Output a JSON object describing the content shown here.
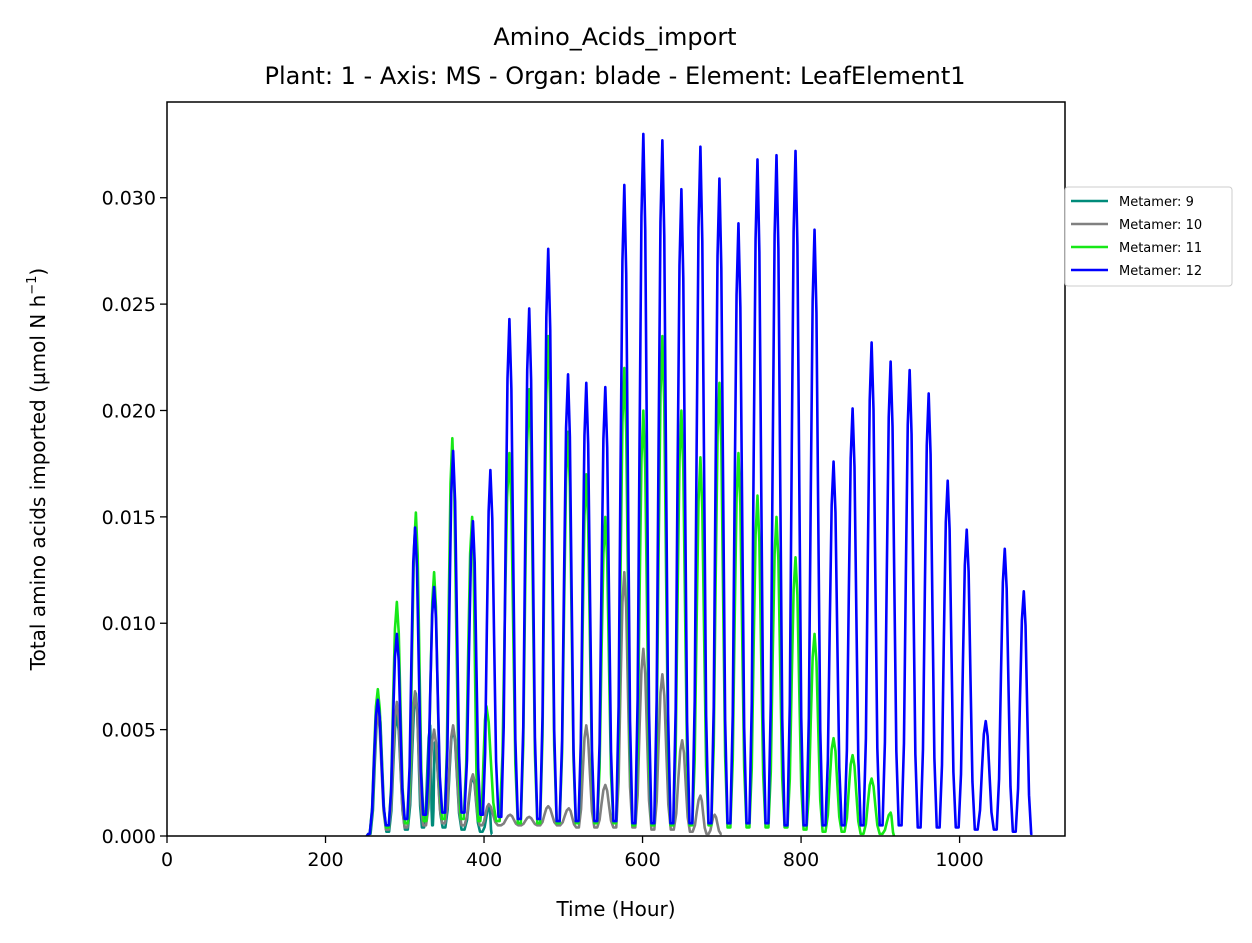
{
  "chart_data": {
    "type": "line",
    "title": "Amino_Acids_import",
    "subtitle": "Plant: 1 - Axis: MS - Organ: blade - Element: LeafElement1",
    "xlabel": "Time (Hour)",
    "ylabel_main": "Total amino acids imported (µmol N h",
    "ylabel_sup": "−1",
    "ylabel_close": ")",
    "xlim": [
      0,
      1133
    ],
    "ylim": [
      0,
      0.0345
    ],
    "xticks": [
      0,
      200,
      400,
      600,
      800,
      1000
    ],
    "xtick_labels": [
      "0",
      "200",
      "400",
      "600",
      "800",
      "1000"
    ],
    "yticks": [
      0,
      0.005,
      0.01,
      0.015,
      0.02,
      0.025,
      0.03
    ],
    "ytick_labels": [
      "0.000",
      "0.005",
      "0.010",
      "0.015",
      "0.020",
      "0.025",
      "0.030"
    ],
    "grid": false,
    "legend_position": "outside-right-top",
    "series": [
      {
        "name": "Metamer: 9",
        "color": "#008b7a",
        "start": 252,
        "end": 410,
        "period": 24,
        "peaks": [
          [
            267,
            0.0062
          ],
          [
            290,
            0.0057
          ],
          [
            314,
            0.0067
          ],
          [
            332,
            0.0052
          ],
          [
            338,
            0.0044
          ],
          [
            361,
            0.0051
          ],
          [
            386,
            0.0028
          ],
          [
            407,
            0.0014
          ]
        ],
        "troughs": [
          0.0001,
          0.0002,
          0.0003,
          0.0004,
          0.0005,
          0.0004,
          0.0003,
          0.0002,
          0.0001
        ]
      },
      {
        "name": "Metamer: 10",
        "color": "#808080",
        "start": 252,
        "end": 700,
        "period": 24,
        "peaks": [
          [
            266,
            0.0058
          ],
          [
            290,
            0.0063
          ],
          [
            313,
            0.0068
          ],
          [
            337,
            0.005
          ],
          [
            361,
            0.0052
          ],
          [
            386,
            0.0029
          ],
          [
            406,
            0.0015
          ],
          [
            433,
            0.001
          ],
          [
            457,
            0.0009
          ],
          [
            481,
            0.0014
          ],
          [
            507,
            0.0013
          ],
          [
            529,
            0.0052
          ],
          [
            553,
            0.0024
          ],
          [
            577,
            0.0124
          ],
          [
            601,
            0.0088
          ],
          [
            625,
            0.0076
          ],
          [
            650,
            0.0045
          ],
          [
            673,
            0.0019
          ],
          [
            691,
            0.001
          ]
        ],
        "troughs": [
          0.0001,
          0.0003,
          0.0004,
          0.0005,
          0.0006,
          0.0005,
          0.0005,
          0.0005,
          0.0005,
          0.0005,
          0.0005,
          0.0004,
          0.0004,
          0.0004,
          0.0004,
          0.0003,
          0.0003,
          0.0002,
          0.0001,
          0.0001
        ]
      },
      {
        "name": "Metamer: 11",
        "color": "#17e817",
        "start": 252,
        "end": 918,
        "period": 24,
        "peaks": [
          [
            266,
            0.0069
          ],
          [
            290,
            0.011
          ],
          [
            314,
            0.0152
          ],
          [
            337,
            0.0124
          ],
          [
            360,
            0.0187
          ],
          [
            385,
            0.015
          ],
          [
            403,
            0.0061
          ],
          [
            432,
            0.018
          ],
          [
            457,
            0.021
          ],
          [
            481,
            0.0235
          ],
          [
            506,
            0.019
          ],
          [
            529,
            0.017
          ],
          [
            553,
            0.015
          ],
          [
            577,
            0.022
          ],
          [
            601,
            0.02
          ],
          [
            625,
            0.0235
          ],
          [
            649,
            0.02
          ],
          [
            673,
            0.0178
          ],
          [
            697,
            0.0213
          ],
          [
            721,
            0.018
          ],
          [
            745,
            0.016
          ],
          [
            769,
            0.015
          ],
          [
            793,
            0.0131
          ],
          [
            817,
            0.0095
          ],
          [
            841,
            0.0046
          ],
          [
            865,
            0.0038
          ],
          [
            889,
            0.0027
          ],
          [
            913,
            0.0011
          ]
        ],
        "troughs": [
          0.0001,
          0.0004,
          0.0006,
          0.0007,
          0.0008,
          0.0008,
          0.0007,
          0.0007,
          0.0006,
          0.0006,
          0.0006,
          0.0006,
          0.0006,
          0.0006,
          0.0005,
          0.0005,
          0.0005,
          0.0005,
          0.0005,
          0.0004,
          0.0004,
          0.0004,
          0.0004,
          0.0003,
          0.0002,
          0.0002,
          0.0001,
          0.0001,
          0.0
        ]
      },
      {
        "name": "Metamer: 12",
        "color": "#0000ff",
        "start": 252,
        "end": 1092,
        "period": 24,
        "peaks": [
          [
            266,
            0.0064
          ],
          [
            290,
            0.0095
          ],
          [
            313,
            0.0145
          ],
          [
            337,
            0.0117
          ],
          [
            361,
            0.0181
          ],
          [
            386,
            0.0148
          ],
          [
            408,
            0.0172
          ],
          [
            432,
            0.0243
          ],
          [
            457,
            0.0248
          ],
          [
            481,
            0.0276
          ],
          [
            506,
            0.0217
          ],
          [
            529,
            0.0213
          ],
          [
            553,
            0.0211
          ],
          [
            577,
            0.0306
          ],
          [
            601,
            0.033
          ],
          [
            625,
            0.0327
          ],
          [
            649,
            0.0304
          ],
          [
            673,
            0.0324
          ],
          [
            697,
            0.0309
          ],
          [
            721,
            0.0288
          ],
          [
            745,
            0.0318
          ],
          [
            769,
            0.032
          ],
          [
            793,
            0.0322
          ],
          [
            817,
            0.0285
          ],
          [
            841,
            0.0176
          ],
          [
            865,
            0.0201
          ],
          [
            889,
            0.0232
          ],
          [
            913,
            0.0223
          ],
          [
            937,
            0.0219
          ],
          [
            961,
            0.0208
          ],
          [
            985,
            0.0167
          ],
          [
            1009,
            0.0144
          ],
          [
            1033,
            0.0054
          ],
          [
            1057,
            0.0135
          ],
          [
            1081,
            0.0115
          ]
        ],
        "troughs": [
          0.0001,
          0.0005,
          0.0008,
          0.001,
          0.0011,
          0.0011,
          0.001,
          0.0009,
          0.0008,
          0.0008,
          0.0007,
          0.0007,
          0.0007,
          0.0007,
          0.0006,
          0.0006,
          0.0006,
          0.0006,
          0.0006,
          0.0006,
          0.0006,
          0.0006,
          0.0005,
          0.0005,
          0.0005,
          0.0005,
          0.0005,
          0.0005,
          0.0005,
          0.0004,
          0.0004,
          0.0004,
          0.0003,
          0.0003,
          0.0002,
          0.0001
        ]
      }
    ]
  }
}
